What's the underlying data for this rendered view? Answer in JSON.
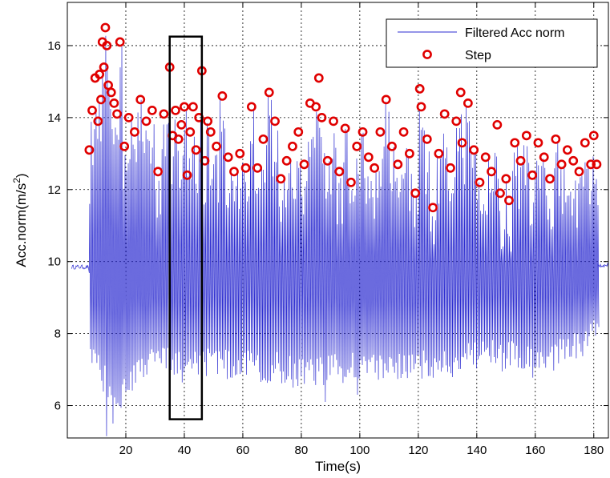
{
  "chart_data": {
    "type": "line",
    "xlabel": "Time(s)",
    "ylabel_main": "Acc.norm(m/s",
    "ylabel_sup": "2",
    "ylabel_close": ")",
    "xlim": [
      0,
      185
    ],
    "ylim": [
      5.1,
      17.2
    ],
    "xticks": [
      20,
      40,
      60,
      80,
      100,
      120,
      140,
      160,
      180
    ],
    "yticks": [
      6,
      8,
      10,
      12,
      14,
      16
    ],
    "grid": true,
    "legend_position": "top-right",
    "colors": {
      "line": "#2b2bd0",
      "markers": "#e00000",
      "box": "#000000"
    },
    "series": [
      {
        "name": "Filtered Acc norm",
        "style": "line",
        "baseline": 9.85,
        "walking_start": 7.5,
        "walking_end": 181.5,
        "walking_end_baseline": 9.9,
        "step_period_s": 0.55,
        "trough_profile": [
          [
            8,
            7.0
          ],
          [
            12,
            6.6
          ],
          [
            16,
            6.0
          ],
          [
            20,
            6.4
          ],
          [
            25,
            6.8
          ],
          [
            30,
            7.0
          ],
          [
            36,
            7.1
          ],
          [
            40,
            6.8
          ],
          [
            45,
            7.1
          ],
          [
            50,
            7.0
          ],
          [
            60,
            6.9
          ],
          [
            70,
            6.9
          ],
          [
            80,
            6.7
          ],
          [
            90,
            6.8
          ],
          [
            100,
            6.9
          ],
          [
            110,
            6.8
          ],
          [
            120,
            6.9
          ],
          [
            130,
            7.0
          ],
          [
            140,
            7.2
          ],
          [
            150,
            7.2
          ],
          [
            160,
            7.0
          ],
          [
            170,
            7.3
          ],
          [
            180,
            7.8
          ]
        ],
        "outlier_troughs": [
          [
            13,
            5.15
          ],
          [
            15,
            5.5
          ],
          [
            88,
            6.1
          ],
          [
            99,
            6.3
          ]
        ]
      },
      {
        "name": "Step",
        "style": "markers",
        "x": [
          7.5,
          8.5,
          9.5,
          10.5,
          11.0,
          11.5,
          12.0,
          12.5,
          13.0,
          13.5,
          14.0,
          15.0,
          16.0,
          17.0,
          18.0,
          19.5,
          21,
          23,
          25,
          27,
          29,
          31,
          33,
          35,
          36,
          37,
          38,
          39,
          40,
          41,
          42,
          43,
          44,
          45,
          46,
          47,
          48,
          49,
          51,
          53,
          55,
          57,
          59,
          61,
          63,
          65,
          67,
          69,
          71,
          73,
          75,
          77,
          79,
          81,
          83,
          85,
          86,
          87,
          89,
          91,
          93,
          95,
          97,
          99,
          101,
          103,
          105,
          107,
          109,
          111,
          113,
          115,
          117,
          119,
          120.5,
          121,
          123,
          125,
          127,
          129,
          131,
          133,
          134.5,
          135,
          137,
          139,
          141,
          143,
          145,
          147,
          148,
          150,
          151,
          153,
          155,
          157,
          159,
          161,
          163,
          165,
          167,
          169,
          171,
          173,
          175,
          177,
          179,
          180,
          181
        ],
        "y": [
          13.1,
          14.2,
          15.1,
          13.9,
          15.2,
          14.5,
          16.1,
          15.4,
          16.5,
          16.0,
          14.9,
          14.7,
          14.4,
          14.1,
          16.1,
          13.2,
          14.0,
          13.6,
          14.5,
          13.9,
          14.2,
          12.5,
          14.1,
          15.4,
          13.5,
          14.2,
          13.4,
          13.8,
          14.3,
          12.4,
          13.6,
          14.3,
          13.1,
          14.0,
          15.3,
          12.8,
          13.9,
          13.6,
          13.2,
          14.6,
          12.9,
          12.5,
          13.0,
          12.6,
          14.3,
          12.6,
          13.4,
          14.7,
          13.9,
          12.3,
          12.8,
          13.2,
          13.6,
          12.7,
          14.4,
          14.3,
          15.1,
          14.0,
          12.8,
          13.9,
          12.5,
          13.7,
          12.2,
          13.2,
          13.6,
          12.9,
          12.6,
          13.6,
          14.5,
          13.2,
          12.7,
          13.6,
          13.0,
          11.9,
          14.8,
          14.3,
          13.4,
          11.5,
          13.0,
          14.1,
          12.6,
          13.9,
          14.7,
          13.3,
          14.4,
          13.1,
          12.2,
          12.9,
          12.5,
          13.8,
          11.9,
          12.3,
          11.7,
          13.3,
          12.8,
          13.5,
          12.4,
          13.3,
          12.9,
          12.3,
          13.4,
          12.7,
          13.1,
          12.8,
          12.5,
          13.3,
          12.7,
          13.5,
          12.7
        ]
      }
    ],
    "annotations": [
      {
        "type": "box",
        "x0": 35,
        "x1": 46,
        "y0": 5.62,
        "y1": 16.25
      }
    ]
  }
}
